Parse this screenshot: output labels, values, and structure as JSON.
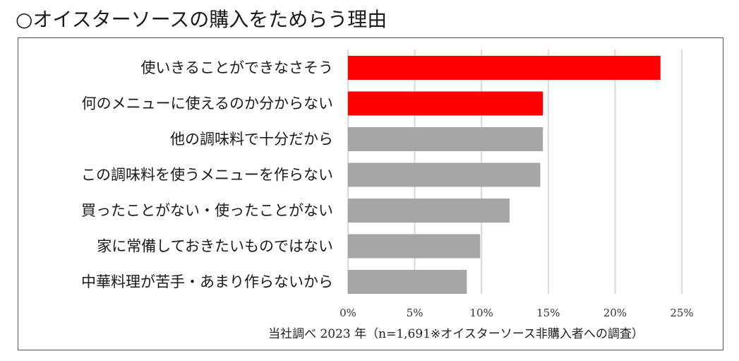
{
  "title": "○オイスターソースの購入をためらう理由",
  "chart_data": {
    "type": "bar",
    "orientation": "horizontal",
    "categories": [
      "使いきることができなさそう",
      "何のメニューに使えるのか分からない",
      "他の調味料で十分だから",
      "この調味料を使うメニューを作らない",
      "買ったことがない・使ったことがない",
      "家に常備しておきたいものではない",
      "中華料理が苦手・あまり作らないから"
    ],
    "values": [
      23.4,
      14.6,
      14.6,
      14.4,
      12.1,
      9.9,
      8.9
    ],
    "colors": [
      "#ff0000",
      "#ff0000",
      "#a6a6a6",
      "#a6a6a6",
      "#a6a6a6",
      "#a6a6a6",
      "#a6a6a6"
    ],
    "xlim": [
      0,
      25
    ],
    "xticks": [
      0,
      5,
      10,
      15,
      20,
      25
    ],
    "tick_labels": [
      "0%",
      "5%",
      "10%",
      "15%",
      "20%",
      "25%"
    ],
    "grid": true,
    "source": "当社調べ 2023 年（n=1,691※オイスターソース非購入者への調査）"
  }
}
